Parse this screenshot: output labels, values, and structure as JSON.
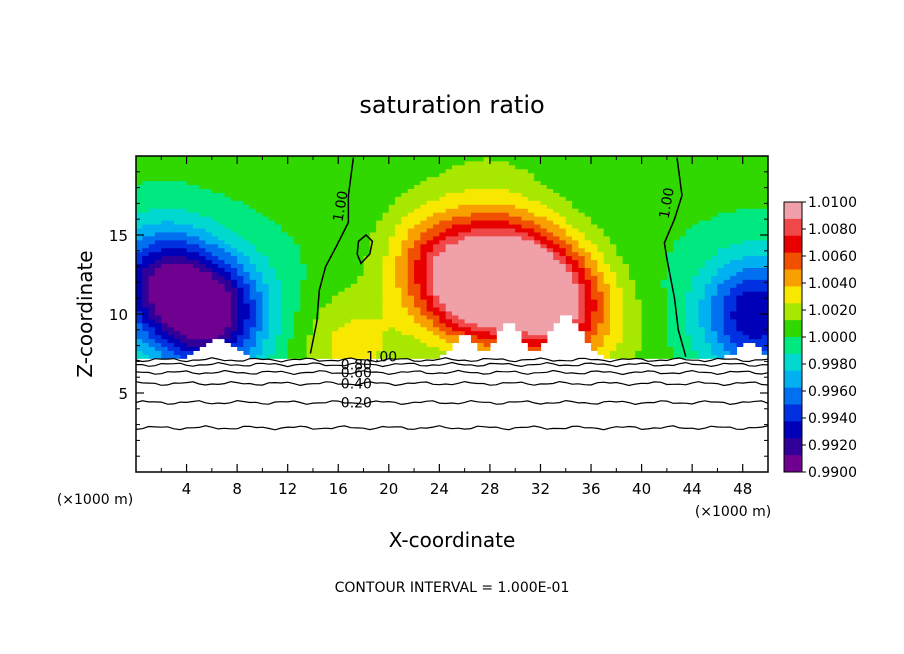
{
  "chart_data": {
    "type": "heatmap",
    "title": "saturation ratio",
    "xlabel": "X-coordinate",
    "ylabel": "Z-coordinate",
    "x_unit": "(×1000 m)",
    "x_unit_right": "(×1000 m)",
    "xlim": [
      0,
      50
    ],
    "ylim": [
      0,
      20
    ],
    "xticks": [
      4,
      8,
      12,
      16,
      20,
      24,
      28,
      32,
      36,
      40,
      44,
      48
    ],
    "yticks": [
      5,
      10,
      15
    ],
    "footer": "CONTOUR INTERVAL = 1.000E-01",
    "colorbar": {
      "labels": [
        "1.0100",
        "1.0080",
        "1.0060",
        "1.0040",
        "1.0020",
        "1.0000",
        "0.9980",
        "0.9960",
        "0.9940",
        "0.9920",
        "0.9900"
      ],
      "colors": [
        "#f0a0a8",
        "#f04848",
        "#e80000",
        "#f05000",
        "#f8a000",
        "#f8e800",
        "#a8e800",
        "#30d800",
        "#00e880",
        "#00d8d0",
        "#00b0f0",
        "#0070f0",
        "#0030e0",
        "#0000b8",
        "#300098",
        "#700090"
      ]
    },
    "saturated_contours": [
      {
        "label": "1.00",
        "points": [
          [
            13.8,
            7.5
          ],
          [
            14.3,
            9.5
          ],
          [
            14.5,
            11.5
          ],
          [
            15.0,
            13.0
          ],
          [
            15.8,
            14.2
          ],
          [
            16.8,
            15.8
          ],
          [
            16.8,
            17.5
          ],
          [
            17.2,
            19.9
          ]
        ]
      },
      {
        "label": "1.00",
        "points": [
          [
            43.5,
            7.3
          ],
          [
            42.9,
            9.0
          ],
          [
            42.6,
            11.0
          ],
          [
            42.0,
            13.5
          ],
          [
            41.8,
            14.5
          ],
          [
            42.6,
            16.0
          ],
          [
            43.2,
            17.5
          ],
          [
            42.8,
            19.9
          ]
        ]
      },
      {
        "label": "",
        "closed": true,
        "points": [
          [
            17.8,
            13.2
          ],
          [
            18.5,
            13.8
          ],
          [
            18.7,
            14.6
          ],
          [
            18.2,
            15.0
          ],
          [
            17.6,
            14.6
          ],
          [
            17.5,
            13.8
          ]
        ]
      }
    ],
    "subsaturated_contours": [
      {
        "label": "0.20",
        "z": 4.4
      },
      {
        "label": "0.40",
        "z": 5.6
      },
      {
        "label": "0.60",
        "z": 6.3
      },
      {
        "label": "0.80",
        "z": 6.8
      },
      {
        "label": "",
        "z": 7.1
      },
      {
        "label": "",
        "z": 2.8
      }
    ],
    "field_centers": [
      {
        "x": 6.0,
        "z": 10.0,
        "value": 0.9908
      },
      {
        "x": 2.0,
        "z": 12.0,
        "value": 0.9925
      },
      {
        "x": 49.0,
        "z": 10.0,
        "value": 0.9925
      },
      {
        "x": 30.0,
        "z": 12.5,
        "value": 1.0085
      },
      {
        "x": 26.5,
        "z": 11.5,
        "value": 1.0075
      },
      {
        "x": 33.5,
        "z": 10.5,
        "value": 1.0078
      },
      {
        "x": 23.5,
        "z": 13.5,
        "value": 1.0042
      },
      {
        "x": 17.0,
        "z": 7.8,
        "value": 1.003
      },
      {
        "x": 38.0,
        "z": 8.0,
        "value": 1.001
      },
      {
        "x": 28.0,
        "z": 17.5,
        "value": 1.001
      }
    ]
  }
}
